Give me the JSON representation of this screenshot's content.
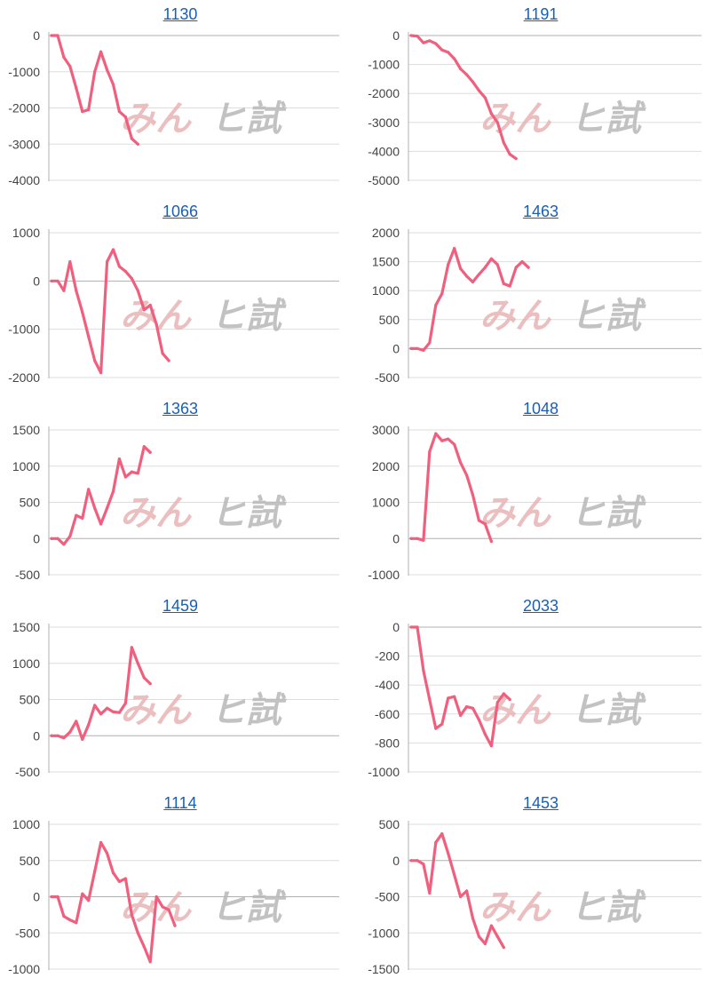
{
  "colors": {
    "line": "#f0607e",
    "grid": "#dddddd",
    "axis": "#b0b0b0",
    "title": "#1a5fb4",
    "tick": "#444444",
    "watermark_left": "#e8b4b4",
    "watermark_right": "#b8b8b8"
  },
  "watermark": {
    "left": "みん",
    "right": "ヒ試"
  },
  "chart_data": [
    {
      "type": "line",
      "title": "1130",
      "ylim": [
        -4000,
        0
      ],
      "yticks": [
        0,
        -1000,
        -2000,
        -3000,
        -4000
      ],
      "values": [
        0,
        0,
        -600,
        -850,
        -1450,
        -2100,
        -2050,
        -1000,
        -450,
        -950,
        -1350,
        -2100,
        -2250,
        -2850,
        -3000
      ]
    },
    {
      "type": "line",
      "title": "1191",
      "ylim": [
        -5000,
        0
      ],
      "yticks": [
        0,
        -1000,
        -2000,
        -3000,
        -4000,
        -5000
      ],
      "values": [
        0,
        -20,
        -250,
        -180,
        -280,
        -500,
        -580,
        -800,
        -1150,
        -1350,
        -1600,
        -1900,
        -2150,
        -2700,
        -3000,
        -3700,
        -4100,
        -4250
      ]
    },
    {
      "type": "line",
      "title": "1066",
      "ylim": [
        -2000,
        1000
      ],
      "yticks": [
        1000,
        0,
        -1000,
        -2000
      ],
      "values": [
        0,
        0,
        -200,
        400,
        -200,
        -650,
        -1150,
        -1650,
        -1900,
        400,
        650,
        300,
        200,
        50,
        -200,
        -600,
        -500,
        -900,
        -1500,
        -1650
      ]
    },
    {
      "type": "line",
      "title": "1463",
      "ylim": [
        -500,
        2000
      ],
      "yticks": [
        2000,
        1500,
        1000,
        500,
        0,
        -500
      ],
      "values": [
        0,
        0,
        -30,
        100,
        750,
        950,
        1450,
        1730,
        1380,
        1250,
        1150,
        1280,
        1400,
        1550,
        1450,
        1120,
        1080,
        1400,
        1500,
        1400
      ]
    },
    {
      "type": "line",
      "title": "1363",
      "ylim": [
        -500,
        1500
      ],
      "yticks": [
        1500,
        1000,
        500,
        0,
        -500
      ],
      "values": [
        0,
        0,
        -80,
        30,
        320,
        280,
        680,
        420,
        200,
        420,
        650,
        1100,
        850,
        920,
        900,
        1270,
        1190
      ]
    },
    {
      "type": "line",
      "title": "1048",
      "ylim": [
        -1000,
        3000
      ],
      "yticks": [
        3000,
        2000,
        1000,
        0,
        -1000
      ],
      "values": [
        0,
        0,
        -50,
        2400,
        2900,
        2700,
        2750,
        2600,
        2100,
        1750,
        1200,
        500,
        400,
        -80
      ]
    },
    {
      "type": "line",
      "title": "1459",
      "ylim": [
        -500,
        1500
      ],
      "yticks": [
        1500,
        1000,
        500,
        0,
        -500
      ],
      "values": [
        0,
        0,
        -30,
        50,
        200,
        -50,
        150,
        420,
        300,
        380,
        330,
        320,
        450,
        1220,
        1000,
        800,
        720
      ]
    },
    {
      "type": "line",
      "title": "2033",
      "ylim": [
        -1000,
        0
      ],
      "yticks": [
        0,
        -200,
        -400,
        -600,
        -800,
        -1000
      ],
      "values": [
        0,
        0,
        -300,
        -500,
        -700,
        -670,
        -490,
        -480,
        -610,
        -550,
        -560,
        -640,
        -740,
        -820,
        -520,
        -460,
        -500
      ]
    },
    {
      "type": "line",
      "title": "1114",
      "ylim": [
        -1000,
        1000
      ],
      "yticks": [
        1000,
        500,
        0,
        -500,
        -1000
      ],
      "values": [
        0,
        0,
        -270,
        -320,
        -360,
        40,
        -50,
        350,
        750,
        600,
        330,
        210,
        250,
        -250,
        -500,
        -690,
        -900,
        0,
        -140,
        -180,
        -400
      ]
    },
    {
      "type": "line",
      "title": "1453",
      "ylim": [
        -1500,
        500
      ],
      "yticks": [
        500,
        0,
        -500,
        -1000,
        -1500
      ],
      "values": [
        0,
        0,
        -50,
        -450,
        250,
        370,
        100,
        -200,
        -500,
        -420,
        -800,
        -1050,
        -1150,
        -900,
        -1050,
        -1200
      ]
    }
  ]
}
